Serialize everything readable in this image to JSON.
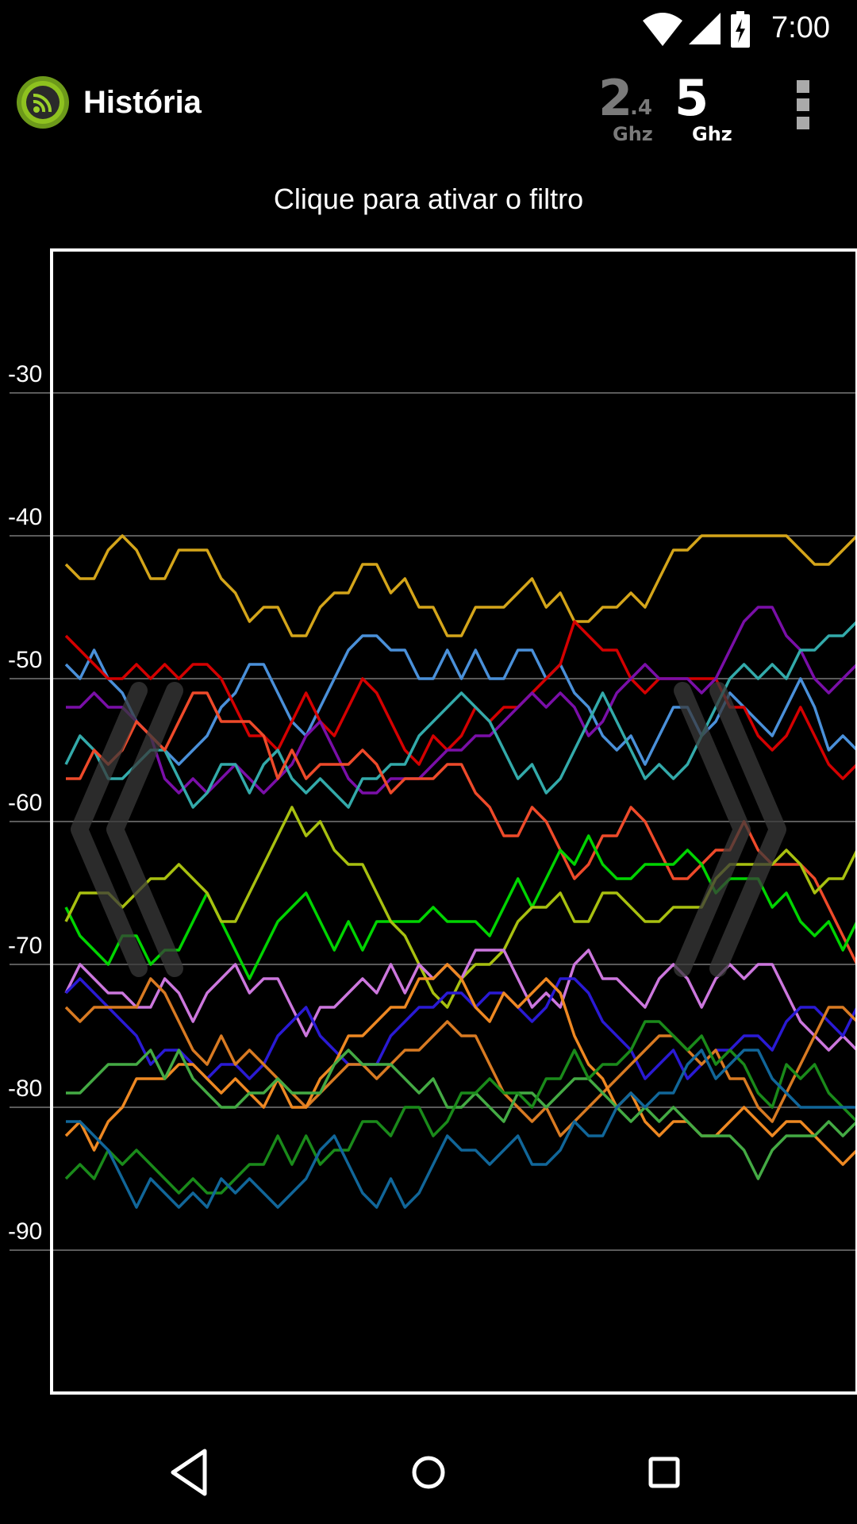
{
  "status_bar": {
    "time": "7:00",
    "icons": [
      "wifi-icon",
      "cell-signal-icon",
      "battery-charging-icon"
    ]
  },
  "app_bar": {
    "title": "História",
    "logo_icon": "wifi-analyzer-logo",
    "band_24": {
      "num": "2",
      "dec": ".4",
      "unit": "Ghz",
      "color": "#7a7a7a"
    },
    "band_5": {
      "num": "5",
      "unit": "Ghz",
      "color": "#ffffff"
    },
    "menu_icon": "overflow-menu-icon"
  },
  "hint": "Clique para ativar o filtro",
  "nav_bar": {
    "icons": [
      "back-icon",
      "home-icon",
      "recents-icon"
    ]
  },
  "chart_data": {
    "type": "line",
    "ylim": [
      -100,
      -20
    ],
    "yticks": [
      "-30",
      "-40",
      "-50",
      "-60",
      "-70",
      "-80",
      "-90"
    ],
    "ytick_values": [
      -30,
      -40,
      -50,
      -60,
      -70,
      -80,
      -90
    ],
    "grid": true,
    "x_points": 57,
    "series": [
      {
        "color": "#d4a51a",
        "values": [
          -42,
          -43,
          -43,
          -41,
          -40,
          -41,
          -43,
          -43,
          -41,
          -41,
          -41,
          -43,
          -44,
          -46,
          -45,
          -45,
          -47,
          -47,
          -45,
          -44,
          -44,
          -42,
          -42,
          -44,
          -43,
          -45,
          -45,
          -47,
          -47,
          -45,
          -45,
          -45,
          -44,
          -43,
          -45,
          -44,
          -46,
          -46,
          -45,
          -45,
          -44,
          -45,
          -43,
          -41,
          -41,
          -40,
          -40,
          -40,
          -40,
          -40,
          -40,
          -40,
          -41,
          -42,
          -42,
          -41,
          -40,
          -41,
          -41
        ]
      },
      {
        "color": "#4a90d9",
        "values": [
          -49,
          -50,
          -48,
          -50,
          -51,
          -53,
          -54,
          -55,
          -56,
          -55,
          -54,
          -52,
          -51,
          -49,
          -49,
          -51,
          -53,
          -54,
          -52,
          -50,
          -48,
          -47,
          -47,
          -48,
          -48,
          -50,
          -50,
          -48,
          -50,
          -48,
          -50,
          -50,
          -48,
          -48,
          -50,
          -49,
          -51,
          -52,
          -54,
          -55,
          -54,
          -56,
          -54,
          -52,
          -52,
          -54,
          -53,
          -51,
          -52,
          -53,
          -54,
          -52,
          -50,
          -52,
          -55,
          -54,
          -55
        ]
      },
      {
        "color": "#d40000",
        "values": [
          -47,
          -48,
          -49,
          -50,
          -50,
          -49,
          -50,
          -49,
          -50,
          -49,
          -49,
          -50,
          -52,
          -54,
          -54,
          -55,
          -53,
          -51,
          -53,
          -54,
          -52,
          -50,
          -51,
          -53,
          -55,
          -56,
          -54,
          -55,
          -54,
          -52,
          -53,
          -52,
          -52,
          -51,
          -50,
          -49,
          -46,
          -47,
          -48,
          -48,
          -50,
          -51,
          -50,
          -50,
          -50,
          -50,
          -50,
          -52,
          -52,
          -54,
          -55,
          -54,
          -52,
          -54,
          -56,
          -57,
          -56,
          -58,
          -56,
          -55,
          -55
        ]
      },
      {
        "color": "#7a0fa8",
        "values": [
          -52,
          -52,
          -51,
          -52,
          -52,
          -53,
          -54,
          -57,
          -58,
          -57,
          -58,
          -57,
          -56,
          -57,
          -58,
          -57,
          -56,
          -54,
          -53,
          -55,
          -57,
          -58,
          -58,
          -57,
          -57,
          -57,
          -56,
          -55,
          -55,
          -54,
          -54,
          -53,
          -52,
          -51,
          -52,
          -51,
          -52,
          -54,
          -53,
          -51,
          -50,
          -49,
          -50,
          -50,
          -50,
          -51,
          -50,
          -48,
          -46,
          -45,
          -45,
          -47,
          -48,
          -50,
          -51,
          -50,
          -49,
          -52,
          -55
        ]
      },
      {
        "color": "#33aaaa",
        "values": [
          -56,
          -54,
          -55,
          -57,
          -57,
          -56,
          -55,
          -55,
          -57,
          -59,
          -58,
          -56,
          -56,
          -58,
          -56,
          -55,
          -57,
          -58,
          -57,
          -58,
          -59,
          -57,
          -57,
          -56,
          -56,
          -54,
          -53,
          -52,
          -51,
          -52,
          -53,
          -55,
          -57,
          -56,
          -58,
          -57,
          -55,
          -53,
          -51,
          -53,
          -55,
          -57,
          -56,
          -57,
          -56,
          -54,
          -52,
          -50,
          -49,
          -50,
          -49,
          -50,
          -48,
          -48,
          -47,
          -47,
          -46,
          -47,
          -49
        ]
      },
      {
        "color": "#ee4a2a",
        "values": [
          -57,
          -57,
          -55,
          -56,
          -55,
          -53,
          -54,
          -55,
          -53,
          -51,
          -51,
          -53,
          -53,
          -53,
          -54,
          -57,
          -55,
          -57,
          -56,
          -56,
          -56,
          -55,
          -56,
          -58,
          -57,
          -57,
          -57,
          -56,
          -56,
          -58,
          -59,
          -61,
          -61,
          -59,
          -60,
          -62,
          -64,
          -63,
          -61,
          -61,
          -59,
          -60,
          -62,
          -64,
          -64,
          -63,
          -62,
          -62,
          -60,
          -62,
          -63,
          -63,
          -63,
          -64,
          -66,
          -68,
          -70,
          -68,
          -69
        ]
      },
      {
        "color": "#00d400",
        "values": [
          -66,
          -68,
          -69,
          -70,
          -68,
          -68,
          -70,
          -69,
          -69,
          -67,
          -65,
          -67,
          -69,
          -71,
          -69,
          -67,
          -66,
          -65,
          -67,
          -69,
          -67,
          -69,
          -67,
          -67,
          -67,
          -67,
          -66,
          -67,
          -67,
          -67,
          -68,
          -66,
          -64,
          -66,
          -64,
          -62,
          -63,
          -61,
          -63,
          -64,
          -64,
          -63,
          -63,
          -63,
          -62,
          -63,
          -65,
          -64,
          -64,
          -64,
          -66,
          -65,
          -67,
          -68,
          -67,
          -69,
          -67,
          -68,
          -67,
          -66
        ]
      },
      {
        "color": "#a8c010",
        "values": [
          -67,
          -65,
          -65,
          -65,
          -66,
          -65,
          -64,
          -64,
          -63,
          -64,
          -65,
          -67,
          -67,
          -65,
          -63,
          -61,
          -59,
          -61,
          -60,
          -62,
          -63,
          -63,
          -65,
          -67,
          -68,
          -70,
          -72,
          -73,
          -71,
          -70,
          -70,
          -69,
          -67,
          -66,
          -66,
          -65,
          -67,
          -67,
          -65,
          -65,
          -66,
          -67,
          -67,
          -66,
          -66,
          -66,
          -64,
          -63,
          -63,
          -63,
          -63,
          -62,
          -63,
          -65,
          -64,
          -64,
          -62,
          -64,
          -64,
          -65
        ]
      },
      {
        "color": "#cc77dd",
        "values": [
          -72,
          -70,
          -71,
          -72,
          -72,
          -73,
          -73,
          -71,
          -72,
          -74,
          -72,
          -71,
          -70,
          -72,
          -71,
          -71,
          -73,
          -75,
          -73,
          -73,
          -72,
          -71,
          -72,
          -70,
          -72,
          -70,
          -71,
          -70,
          -71,
          -69,
          -69,
          -69,
          -71,
          -73,
          -72,
          -73,
          -70,
          -69,
          -71,
          -71,
          -72,
          -73,
          -71,
          -70,
          -71,
          -73,
          -71,
          -70,
          -71,
          -70,
          -70,
          -72,
          -74,
          -75,
          -76,
          -75,
          -76,
          -77,
          -77
        ]
      },
      {
        "color": "#2a1ad4",
        "values": [
          -72,
          -71,
          -72,
          -73,
          -74,
          -75,
          -77,
          -76,
          -76,
          -77,
          -78,
          -77,
          -77,
          -78,
          -77,
          -75,
          -74,
          -73,
          -75,
          -76,
          -77,
          -77,
          -77,
          -75,
          -74,
          -73,
          -73,
          -72,
          -72,
          -73,
          -72,
          -72,
          -73,
          -74,
          -73,
          -71,
          -71,
          -72,
          -74,
          -75,
          -76,
          -78,
          -77,
          -76,
          -78,
          -77,
          -76,
          -76,
          -75,
          -75,
          -76,
          -74,
          -73,
          -73,
          -74,
          -75,
          -73,
          -72,
          -74,
          -73
        ]
      },
      {
        "color": "#d87a22",
        "values": [
          -73,
          -74,
          -73,
          -73,
          -73,
          -73,
          -71,
          -72,
          -74,
          -76,
          -77,
          -75,
          -77,
          -76,
          -77,
          -78,
          -79,
          -80,
          -79,
          -78,
          -77,
          -77,
          -78,
          -77,
          -76,
          -76,
          -75,
          -74,
          -75,
          -75,
          -77,
          -79,
          -80,
          -81,
          -80,
          -82,
          -81,
          -80,
          -79,
          -78,
          -77,
          -76,
          -75,
          -75,
          -76,
          -77,
          -76,
          -78,
          -78,
          -80,
          -81,
          -79,
          -77,
          -75,
          -73,
          -73,
          -74,
          -74
        ]
      },
      {
        "color": "#ee8822",
        "values": [
          -82,
          -81,
          -83,
          -81,
          -80,
          -78,
          -78,
          -78,
          -77,
          -77,
          -78,
          -79,
          -78,
          -79,
          -80,
          -78,
          -80,
          -80,
          -78,
          -77,
          -75,
          -75,
          -74,
          -73,
          -73,
          -71,
          -71,
          -70,
          -71,
          -73,
          -74,
          -72,
          -73,
          -72,
          -71,
          -72,
          -75,
          -77,
          -78,
          -80,
          -79,
          -81,
          -82,
          -81,
          -81,
          -82,
          -82,
          -81,
          -80,
          -81,
          -82,
          -81,
          -81,
          -82,
          -83,
          -84,
          -83,
          -82,
          -84
        ]
      },
      {
        "color": "#44aa44",
        "values": [
          -79,
          -79,
          -78,
          -77,
          -77,
          -77,
          -76,
          -78,
          -76,
          -78,
          -79,
          -80,
          -80,
          -79,
          -79,
          -78,
          -79,
          -79,
          -79,
          -77,
          -76,
          -77,
          -77,
          -77,
          -78,
          -79,
          -78,
          -80,
          -80,
          -79,
          -80,
          -81,
          -79,
          -79,
          -80,
          -79,
          -78,
          -78,
          -79,
          -80,
          -81,
          -80,
          -81,
          -80,
          -81,
          -82,
          -82,
          -82,
          -83,
          -85,
          -83,
          -82,
          -82,
          -82,
          -81,
          -82,
          -81,
          -80,
          -79
        ]
      },
      {
        "color": "#1a8a1a",
        "values": [
          -85,
          -84,
          -85,
          -83,
          -84,
          -83,
          -84,
          -85,
          -86,
          -85,
          -86,
          -86,
          -85,
          -84,
          -84,
          -82,
          -84,
          -82,
          -84,
          -83,
          -83,
          -81,
          -81,
          -82,
          -80,
          -80,
          -82,
          -81,
          -79,
          -79,
          -78,
          -79,
          -79,
          -80,
          -78,
          -78,
          -76,
          -78,
          -77,
          -77,
          -76,
          -74,
          -74,
          -75,
          -76,
          -75,
          -77,
          -76,
          -77,
          -79,
          -80,
          -77,
          -78,
          -77,
          -79,
          -80,
          -81,
          -81,
          -80
        ]
      },
      {
        "color": "#116699",
        "values": [
          -81,
          -81,
          -82,
          -83,
          -85,
          -87,
          -85,
          -86,
          -87,
          -86,
          -87,
          -85,
          -86,
          -85,
          -86,
          -87,
          -86,
          -85,
          -83,
          -82,
          -84,
          -86,
          -87,
          -85,
          -87,
          -86,
          -84,
          -82,
          -83,
          -83,
          -84,
          -83,
          -82,
          -84,
          -84,
          -83,
          -81,
          -82,
          -82,
          -80,
          -79,
          -80,
          -79,
          -79,
          -77,
          -76,
          -78,
          -77,
          -76,
          -76,
          -78,
          -79,
          -80,
          -80,
          -80,
          -80,
          -80
        ]
      }
    ]
  }
}
